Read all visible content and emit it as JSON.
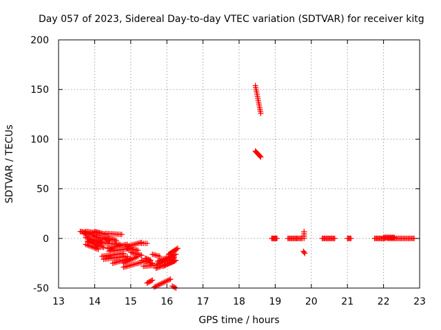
{
  "chart_data": {
    "type": "scatter",
    "title": "Day 057 of 2023, Sidereal Day-to-day VTEC variation (SDTVAR) for receiver kitg",
    "xlabel": "GPS time / hours",
    "ylabel": "SDTVAR / TECUs",
    "xlim": [
      13,
      23
    ],
    "ylim": [
      -50,
      200
    ],
    "xticks": [
      "13",
      "14",
      "15",
      "16",
      "17",
      "18",
      "19",
      "20",
      "21",
      "22",
      "23"
    ],
    "yticks": [
      "-50",
      "0",
      "50",
      "100",
      "150",
      "200"
    ],
    "grid": true,
    "marker": "+",
    "color": "#ff0000",
    "series": [
      {
        "name": "SDTVAR",
        "segments": [
          {
            "x0": 13.6,
            "y0": 7,
            "x1": 13.75,
            "y1": 6,
            "n": 6
          },
          {
            "x0": 13.7,
            "y0": 5,
            "x1": 14.0,
            "y1": 3,
            "n": 10
          },
          {
            "x0": 13.75,
            "y0": 7,
            "x1": 14.2,
            "y1": 5,
            "n": 14
          },
          {
            "x0": 13.75,
            "y0": 1,
            "x1": 14.2,
            "y1": -4,
            "n": 14
          },
          {
            "x0": 13.8,
            "y0": -3,
            "x1": 14.25,
            "y1": -9,
            "n": 14
          },
          {
            "x0": 13.75,
            "y0": -6,
            "x1": 14.1,
            "y1": -11,
            "n": 10
          },
          {
            "x0": 14.0,
            "y0": 7,
            "x1": 14.3,
            "y1": 4,
            "n": 10
          },
          {
            "x0": 14.0,
            "y0": 2,
            "x1": 14.4,
            "y1": -2,
            "n": 12
          },
          {
            "x0": 14.1,
            "y0": -4,
            "x1": 14.7,
            "y1": -6,
            "n": 16
          },
          {
            "x0": 14.3,
            "y0": 5,
            "x1": 14.75,
            "y1": 4,
            "n": 12
          },
          {
            "x0": 14.3,
            "y0": 1,
            "x1": 14.6,
            "y1": -2,
            "n": 10
          },
          {
            "x0": 14.35,
            "y0": -10,
            "x1": 14.9,
            "y1": -6,
            "n": 16
          },
          {
            "x0": 14.4,
            "y0": -13,
            "x1": 15.0,
            "y1": -10,
            "n": 16
          },
          {
            "x0": 14.2,
            "y0": -18,
            "x1": 14.8,
            "y1": -15,
            "n": 16
          },
          {
            "x0": 14.25,
            "y0": -21,
            "x1": 14.9,
            "y1": -18,
            "n": 16
          },
          {
            "x0": 14.5,
            "y0": -25,
            "x1": 15.0,
            "y1": -20,
            "n": 14
          },
          {
            "x0": 14.8,
            "y0": -25,
            "x1": 15.2,
            "y1": -18,
            "n": 12
          },
          {
            "x0": 14.8,
            "y0": -29,
            "x1": 15.3,
            "y1": -24,
            "n": 14
          },
          {
            "x0": 14.9,
            "y0": -8,
            "x1": 15.3,
            "y1": -4,
            "n": 12
          },
          {
            "x0": 14.9,
            "y0": -10,
            "x1": 15.2,
            "y1": -12,
            "n": 10
          },
          {
            "x0": 15.0,
            "y0": -14,
            "x1": 15.3,
            "y1": -17,
            "n": 10
          },
          {
            "x0": 15.3,
            "y0": -5,
            "x1": 15.45,
            "y1": -5,
            "n": 4
          },
          {
            "x0": 15.3,
            "y0": -22,
            "x1": 15.6,
            "y1": -25,
            "n": 10
          },
          {
            "x0": 15.35,
            "y0": -28,
            "x1": 15.7,
            "y1": -27,
            "n": 10
          },
          {
            "x0": 15.4,
            "y0": -20,
            "x1": 15.55,
            "y1": -22,
            "n": 6
          },
          {
            "x0": 15.6,
            "y0": -16,
            "x1": 15.8,
            "y1": -18,
            "n": 6
          },
          {
            "x0": 15.45,
            "y0": -45,
            "x1": 15.6,
            "y1": -42,
            "n": 6
          },
          {
            "x0": 15.65,
            "y0": -49,
            "x1": 16.1,
            "y1": -41,
            "n": 14
          },
          {
            "x0": 15.7,
            "y0": -30,
            "x1": 16.2,
            "y1": -23,
            "n": 16
          },
          {
            "x0": 15.7,
            "y0": -27,
            "x1": 16.2,
            "y1": -19,
            "n": 16
          },
          {
            "x0": 15.75,
            "y0": -23,
            "x1": 16.25,
            "y1": -16,
            "n": 16
          },
          {
            "x0": 15.9,
            "y0": -28,
            "x1": 16.25,
            "y1": -22,
            "n": 12
          },
          {
            "x0": 16.05,
            "y0": -16,
            "x1": 16.3,
            "y1": -10,
            "n": 10
          },
          {
            "x0": 16.15,
            "y0": -48,
            "x1": 16.25,
            "y1": -50,
            "n": 4
          },
          {
            "x0": 18.45,
            "y0": 154,
            "x1": 18.6,
            "y1": 126,
            "n": 16
          },
          {
            "x0": 18.45,
            "y0": 88,
            "x1": 18.6,
            "y1": 82,
            "n": 10
          },
          {
            "x0": 18.9,
            "y0": 0,
            "x1": 19.05,
            "y1": 0,
            "n": 8
          },
          {
            "x0": 19.35,
            "y0": 0,
            "x1": 19.6,
            "y1": 0,
            "n": 10
          },
          {
            "x0": 19.6,
            "y0": 0,
            "x1": 19.75,
            "y1": 0,
            "n": 6
          },
          {
            "x0": 19.8,
            "y0": 7,
            "x1": 19.8,
            "y1": 0,
            "n": 5
          },
          {
            "x0": 19.78,
            "y0": -13,
            "x1": 19.82,
            "y1": -15,
            "n": 3
          },
          {
            "x0": 20.3,
            "y0": 0,
            "x1": 20.65,
            "y1": 0,
            "n": 14
          },
          {
            "x0": 21.0,
            "y0": 0,
            "x1": 21.1,
            "y1": 0,
            "n": 5
          },
          {
            "x0": 21.75,
            "y0": 0,
            "x1": 22.05,
            "y1": 0,
            "n": 12
          },
          {
            "x0": 22.0,
            "y0": 1,
            "x1": 22.3,
            "y1": 1,
            "n": 12
          },
          {
            "x0": 22.1,
            "y0": 0,
            "x1": 22.85,
            "y1": 0,
            "n": 24
          }
        ]
      }
    ]
  }
}
